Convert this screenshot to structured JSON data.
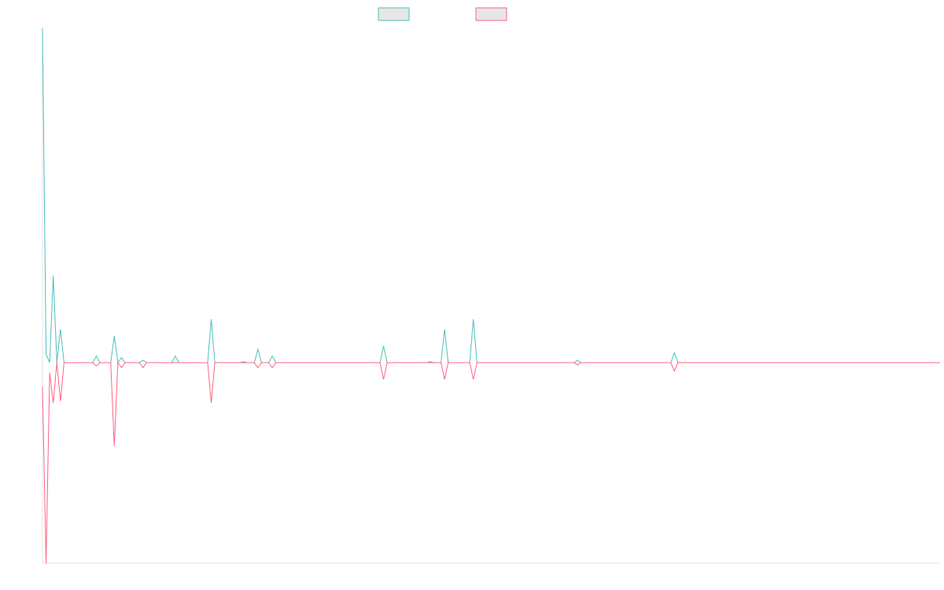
{
  "chart_data": {
    "type": "line",
    "x": [
      0,
      1,
      2,
      3,
      4,
      5,
      6,
      14,
      15,
      16,
      19,
      20,
      21,
      22,
      23,
      27,
      28,
      29,
      36,
      37,
      38,
      46,
      47,
      48,
      55,
      56,
      57,
      59,
      60,
      61,
      63,
      64,
      65,
      94,
      95,
      96,
      107,
      108,
      109,
      111,
      112,
      113,
      119,
      120,
      121,
      148,
      149,
      150,
      175,
      176,
      177,
      250
    ],
    "xlim": [
      0,
      250
    ],
    "ylim": [
      -60,
      100
    ],
    "series": [
      {
        "color": "#4bc0c0",
        "values": [
          100,
          2.6,
          0,
          26,
          0,
          10,
          0,
          0,
          2,
          0,
          0,
          8,
          0,
          1.5,
          0,
          0,
          0.7,
          0,
          0,
          2,
          0,
          0,
          13,
          0,
          0,
          0.3,
          0,
          0,
          4,
          0,
          0,
          2,
          0,
          0,
          5,
          0,
          0,
          0.3,
          0,
          0,
          10,
          0,
          0,
          13,
          0,
          0,
          0.7,
          0,
          0,
          3,
          0,
          0
        ]
      },
      {
        "color": "#ff6384",
        "values": [
          -7,
          -60,
          -3,
          -12,
          0,
          -11.5,
          0,
          0,
          -1,
          0,
          0,
          -25,
          0,
          -1.5,
          0,
          0,
          -1.5,
          0,
          0,
          0,
          0,
          0,
          -12,
          0,
          0,
          0,
          0,
          0,
          -1.5,
          0,
          0,
          -1.5,
          0,
          0,
          -5,
          0,
          0,
          0,
          0,
          0,
          -5,
          0,
          0,
          -5,
          0,
          0,
          -0.7,
          0,
          0,
          -2.5,
          0,
          0
        ]
      }
    ]
  }
}
